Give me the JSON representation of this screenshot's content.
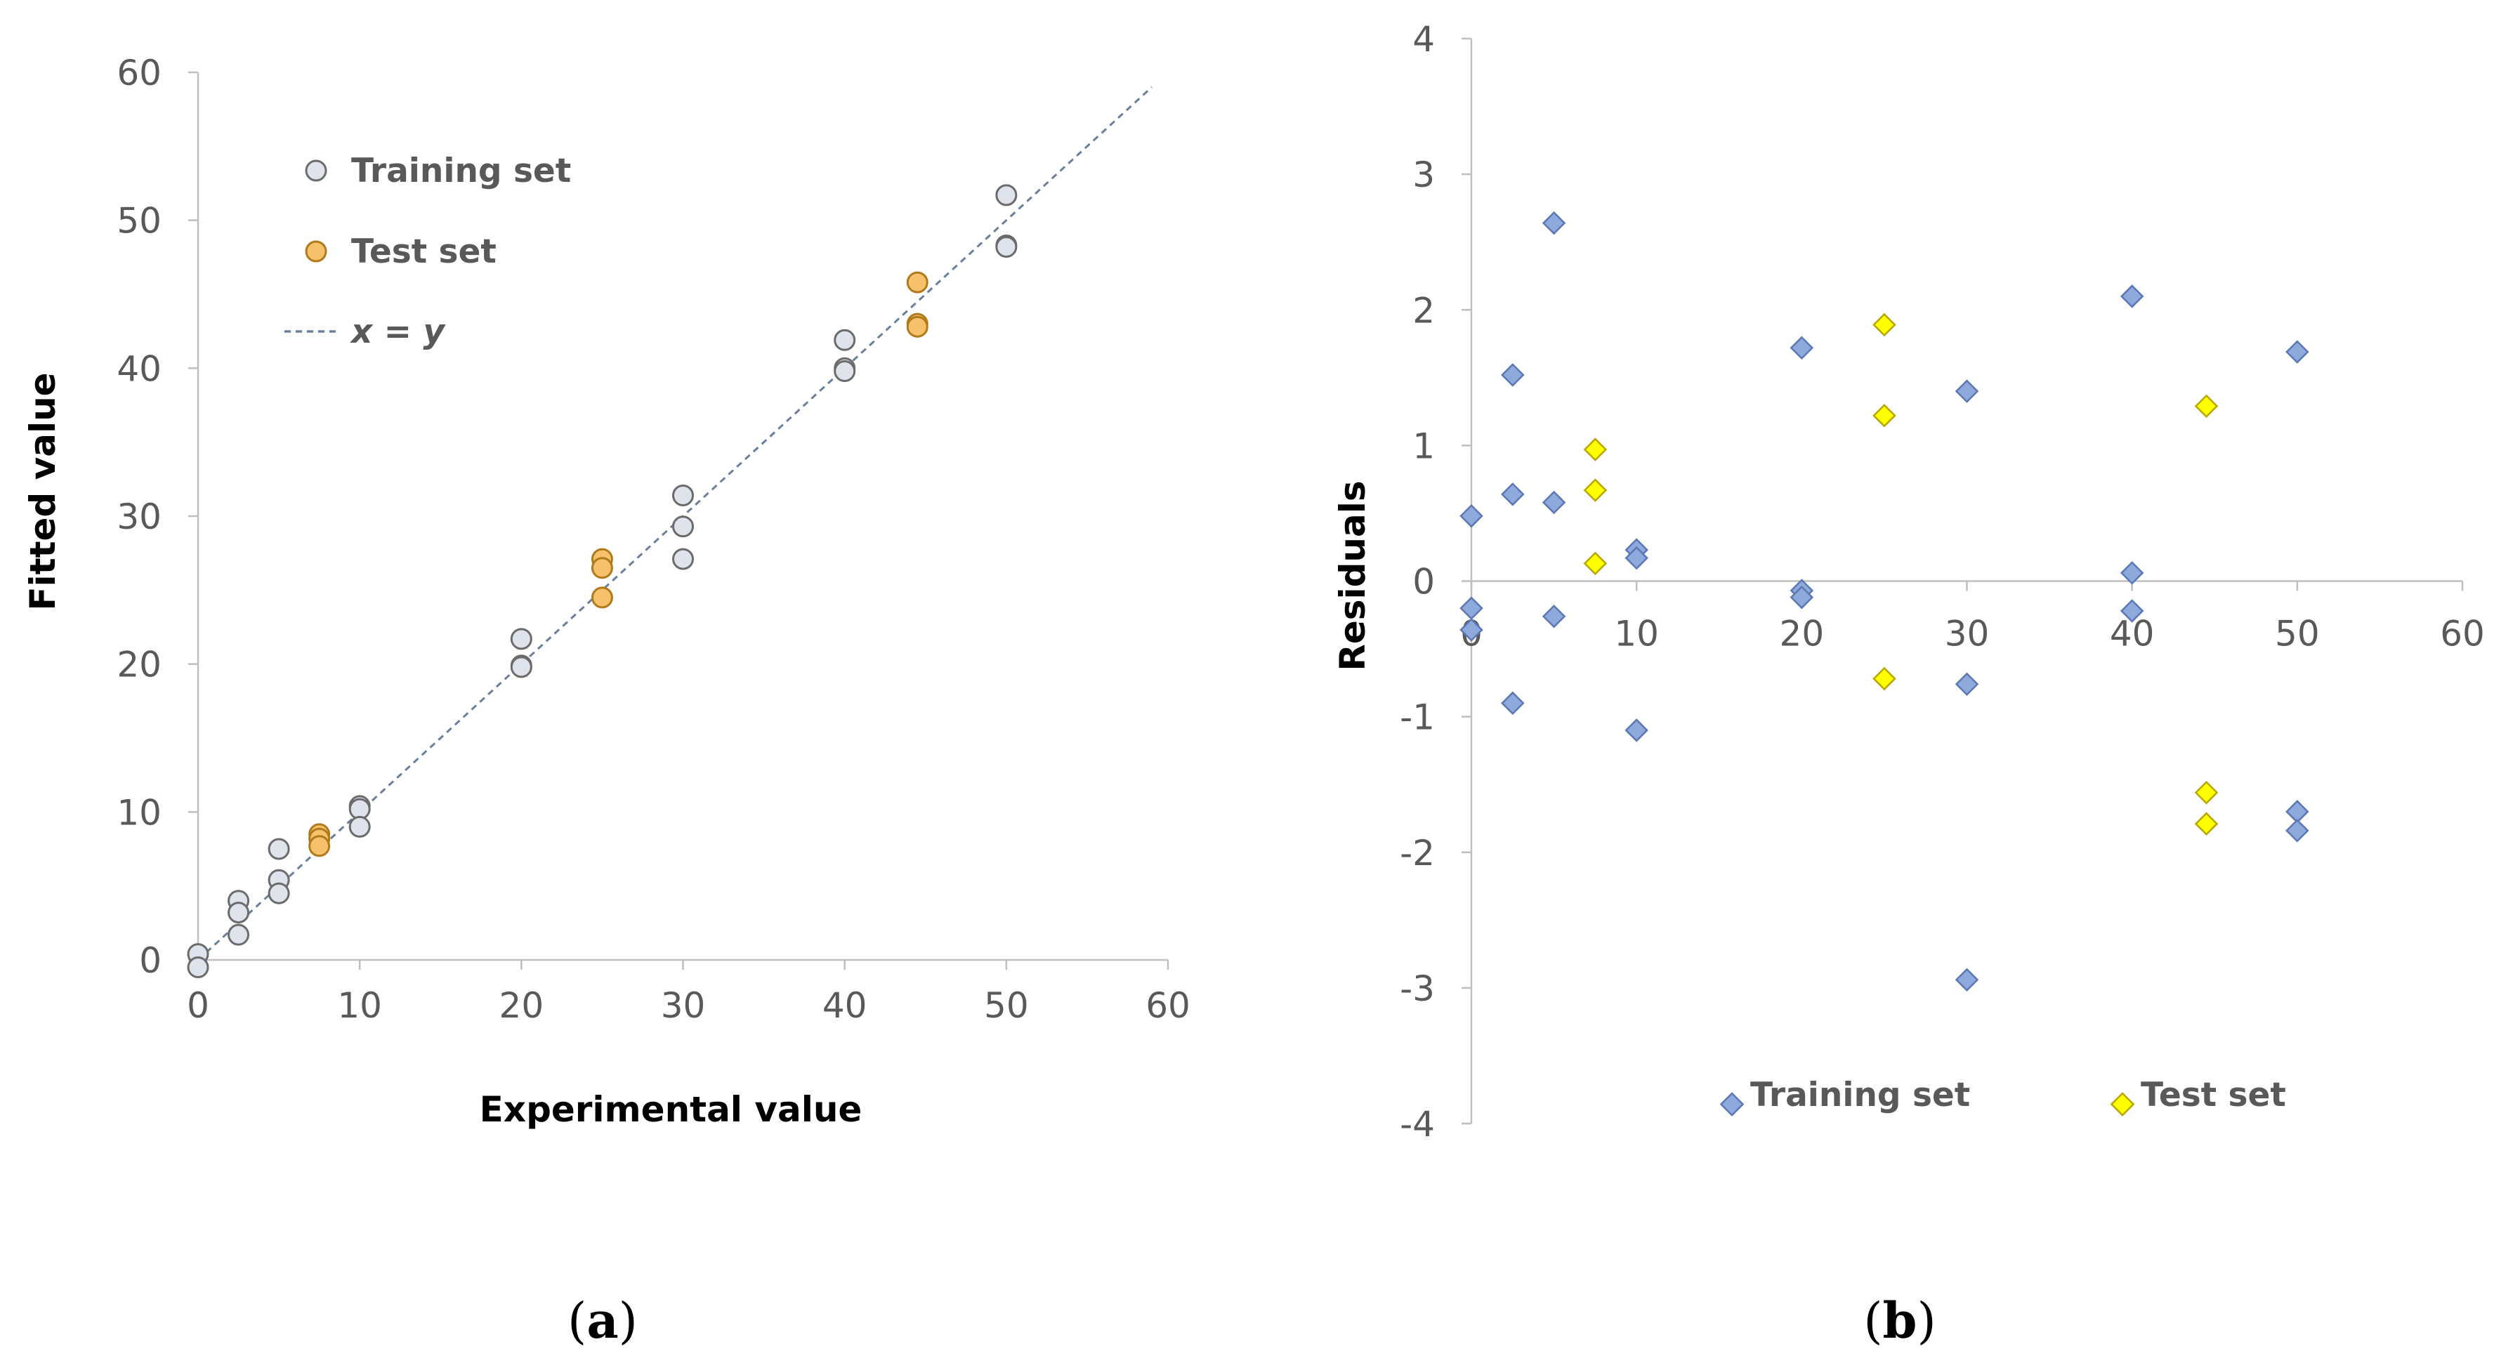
{
  "chart_data": [
    {
      "type": "scatter",
      "panel_label": "a",
      "xlabel": "Experimental value",
      "ylabel": "Fitted value",
      "xlim": [
        0,
        60
      ],
      "ylim": [
        0,
        60
      ],
      "xticks": [
        0,
        10,
        20,
        30,
        40,
        50,
        60
      ],
      "yticks": [
        0,
        10,
        20,
        30,
        40,
        50,
        60
      ],
      "grid": false,
      "legend_position": "top-left",
      "colors": {
        "training_fill": "#dfe3ec",
        "training_stroke": "#6b6b6b",
        "test_fill": "#f5c26b",
        "test_stroke": "#b07a1a",
        "line": "#6a7f9a"
      },
      "legend": [
        {
          "label": "Training set",
          "marker": "circle",
          "series": "training"
        },
        {
          "label": "Test set",
          "marker": "circle",
          "series": "test"
        },
        {
          "label": "x = y",
          "marker": "dashed-line",
          "series": "line"
        }
      ],
      "line": {
        "name": "x = y",
        "x": [
          0,
          59
        ],
        "y": [
          0,
          59
        ]
      },
      "series": [
        {
          "name": "Training set",
          "key": "training",
          "points": [
            [
              0,
              0.4
            ],
            [
              0,
              -0.5
            ],
            [
              2.5,
              4.0
            ],
            [
              2.5,
              3.2
            ],
            [
              2.5,
              1.7
            ],
            [
              5,
              7.5
            ],
            [
              5,
              5.4
            ],
            [
              5,
              4.5
            ],
            [
              10,
              10.4
            ],
            [
              10,
              10.2
            ],
            [
              10,
              9.0
            ],
            [
              20,
              21.7
            ],
            [
              20,
              19.9
            ],
            [
              20,
              19.8
            ],
            [
              30,
              31.4
            ],
            [
              30,
              29.3
            ],
            [
              30,
              27.1
            ],
            [
              40,
              41.9
            ],
            [
              40,
              40.0
            ],
            [
              40,
              39.8
            ],
            [
              50,
              51.7
            ],
            [
              50,
              48.3
            ],
            [
              50,
              48.2
            ]
          ]
        },
        {
          "name": "Test set",
          "key": "test",
          "points": [
            [
              7.5,
              8.5
            ],
            [
              7.5,
              8.2
            ],
            [
              7.5,
              7.7
            ],
            [
              25,
              27.1
            ],
            [
              25,
              26.5
            ],
            [
              25,
              24.5
            ],
            [
              44.5,
              45.8
            ],
            [
              44.5,
              43.0
            ],
            [
              44.5,
              42.8
            ]
          ]
        }
      ]
    },
    {
      "type": "scatter",
      "panel_label": "b",
      "xlabel": "",
      "ylabel": "Residuals",
      "xlim": [
        0,
        60
      ],
      "ylim": [
        -4,
        4
      ],
      "xticks": [
        0,
        10,
        20,
        30,
        40,
        50,
        60
      ],
      "yticks": [
        -4,
        -3,
        -2,
        -1,
        0,
        1,
        2,
        3,
        4
      ],
      "grid": false,
      "legend_position": "bottom",
      "colors": {
        "training_fill": "#8ea9db",
        "training_stroke": "#5b78b4",
        "test_fill": "#ffff00",
        "test_stroke": "#b9a600"
      },
      "legend": [
        {
          "label": "Training set",
          "marker": "diamond",
          "series": "training"
        },
        {
          "label": "Test set",
          "marker": "diamond",
          "series": "test"
        }
      ],
      "series": [
        {
          "name": "Training set",
          "key": "training",
          "points": [
            [
              0,
              0.48
            ],
            [
              0,
              -0.2
            ],
            [
              0,
              -0.36
            ],
            [
              2.5,
              1.52
            ],
            [
              2.5,
              0.64
            ],
            [
              2.5,
              -0.9
            ],
            [
              5,
              2.64
            ],
            [
              5,
              0.58
            ],
            [
              5,
              -0.26
            ],
            [
              10,
              0.23
            ],
            [
              10,
              0.17
            ],
            [
              10,
              -1.1
            ],
            [
              20,
              1.72
            ],
            [
              20,
              -0.07
            ],
            [
              20,
              -0.12
            ],
            [
              30,
              1.4
            ],
            [
              30,
              -0.76
            ],
            [
              30,
              -2.94
            ],
            [
              40,
              2.1
            ],
            [
              40,
              0.06
            ],
            [
              40,
              -0.22
            ],
            [
              50,
              1.69
            ],
            [
              50,
              -1.7
            ],
            [
              50,
              -1.84
            ]
          ]
        },
        {
          "name": "Test set",
          "key": "test",
          "points": [
            [
              7.5,
              0.97
            ],
            [
              7.5,
              0.67
            ],
            [
              7.5,
              0.13
            ],
            [
              25,
              1.89
            ],
            [
              25,
              1.22
            ],
            [
              25,
              -0.72
            ],
            [
              44.5,
              1.29
            ],
            [
              44.5,
              -1.56
            ],
            [
              44.5,
              -1.79
            ]
          ]
        }
      ]
    }
  ]
}
